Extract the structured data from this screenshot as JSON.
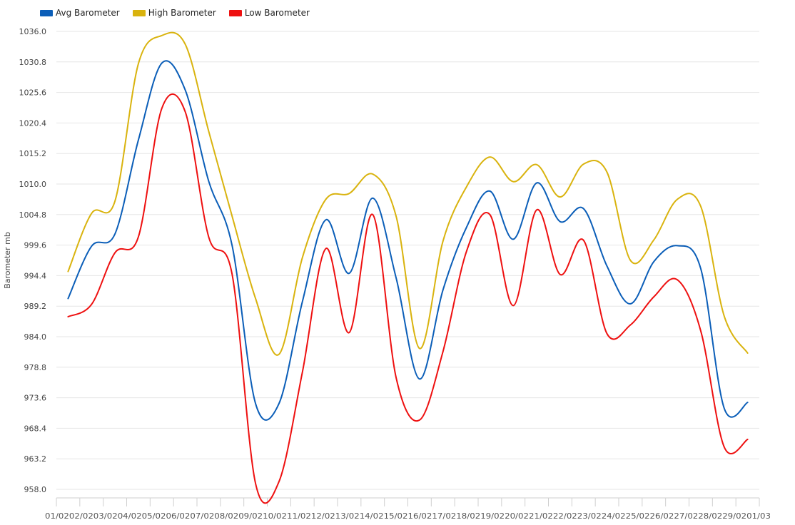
{
  "chart_data": {
    "type": "line",
    "title": "",
    "xlabel": "",
    "ylabel": "Barometer mb",
    "ylim": [
      958.0,
      1036.0
    ],
    "y_ticks": [
      "1036.0",
      "1030.8",
      "1025.6",
      "1020.4",
      "1015.2",
      "1010.0",
      "1004.8",
      "999.6",
      "994.4",
      "989.2",
      "984.0",
      "978.8",
      "973.6",
      "968.4",
      "963.2",
      "958.0"
    ],
    "x_tick_labels": [
      "01/02",
      "02/02",
      "03/02",
      "04/02",
      "05/02",
      "06/02",
      "07/02",
      "08/02",
      "09/02",
      "10/02",
      "11/02",
      "12/02",
      "13/02",
      "14/02",
      "15/02",
      "16/02",
      "17/02",
      "18/02",
      "19/02",
      "20/02",
      "21/02",
      "22/02",
      "23/02",
      "24/02",
      "25/02",
      "26/02",
      "27/02",
      "28/02",
      "29/02",
      "01/03"
    ],
    "x_tick_text": "01/0202/0203/0204/0205/0206/0207/0208/0209/0210/0211/0212/0213/0214/0215/0216/0217/0218/0219/0220/0221/0222/0223/0224/0225/0226/0227/0228/0229/0201/03",
    "grid": "horizontal",
    "legend_position": "top-left",
    "series": [
      {
        "name": "Avg Barometer",
        "color": "#0b5eb8",
        "points": [
          [
            0.5,
            990.5
          ],
          [
            1.5,
            999.4
          ],
          [
            2.5,
            1001.5
          ],
          [
            3.5,
            1017.5
          ],
          [
            4.5,
            1030.6
          ],
          [
            5.5,
            1026.0
          ],
          [
            6.5,
            1010.5
          ],
          [
            7.5,
            999.5
          ],
          [
            8.5,
            972.6
          ],
          [
            9.5,
            972.6
          ],
          [
            10.5,
            990.0
          ],
          [
            11.5,
            1003.9
          ],
          [
            12.5,
            994.8
          ],
          [
            13.5,
            1007.6
          ],
          [
            14.5,
            994.0
          ],
          [
            15.5,
            976.8
          ],
          [
            16.5,
            992.0
          ],
          [
            17.5,
            1002.6
          ],
          [
            18.5,
            1008.8
          ],
          [
            19.5,
            1000.6
          ],
          [
            20.5,
            1010.2
          ],
          [
            21.5,
            1003.6
          ],
          [
            22.5,
            1005.8
          ],
          [
            23.5,
            996.0
          ],
          [
            24.5,
            989.6
          ],
          [
            25.5,
            996.8
          ],
          [
            26.5,
            999.5
          ],
          [
            27.5,
            995.6
          ],
          [
            28.5,
            971.8
          ],
          [
            29.5,
            972.8
          ]
        ]
      },
      {
        "name": "High Barometer",
        "color": "#d9b30e",
        "points": [
          [
            0.5,
            995.1
          ],
          [
            1.5,
            1005.0
          ],
          [
            2.5,
            1007.1
          ],
          [
            3.5,
            1030.5
          ],
          [
            4.5,
            1035.3
          ],
          [
            5.5,
            1033.8
          ],
          [
            6.5,
            1019.0
          ],
          [
            7.5,
            1004.5
          ],
          [
            8.5,
            990.5
          ],
          [
            9.5,
            981.0
          ],
          [
            10.5,
            997.5
          ],
          [
            11.5,
            1007.4
          ],
          [
            12.5,
            1008.4
          ],
          [
            13.5,
            1011.7
          ],
          [
            14.5,
            1004.5
          ],
          [
            15.5,
            982.0
          ],
          [
            16.5,
            1000.3
          ],
          [
            17.5,
            1009.5
          ],
          [
            18.5,
            1014.6
          ],
          [
            19.5,
            1010.4
          ],
          [
            20.5,
            1013.3
          ],
          [
            21.5,
            1007.8
          ],
          [
            22.5,
            1013.4
          ],
          [
            23.5,
            1012.0
          ],
          [
            24.5,
            997.0
          ],
          [
            25.5,
            1000.5
          ],
          [
            26.5,
            1007.4
          ],
          [
            27.5,
            1006.2
          ],
          [
            28.5,
            987.5
          ],
          [
            29.5,
            981.2
          ]
        ]
      },
      {
        "name": "Low Barometer",
        "color": "#ee1010",
        "points": [
          [
            0.5,
            987.4
          ],
          [
            1.5,
            989.5
          ],
          [
            2.5,
            998.3
          ],
          [
            3.5,
            1001.0
          ],
          [
            4.5,
            1022.9
          ],
          [
            5.5,
            1022.3
          ],
          [
            6.5,
            1001.0
          ],
          [
            7.5,
            994.6
          ],
          [
            8.5,
            959.0
          ],
          [
            9.5,
            959.3
          ],
          [
            10.5,
            978.0
          ],
          [
            11.5,
            999.0
          ],
          [
            12.5,
            984.7
          ],
          [
            13.5,
            1004.8
          ],
          [
            14.5,
            977.0
          ],
          [
            15.5,
            969.8
          ],
          [
            16.5,
            981.5
          ],
          [
            17.5,
            998.5
          ],
          [
            18.5,
            1004.8
          ],
          [
            19.5,
            989.3
          ],
          [
            20.5,
            1005.6
          ],
          [
            21.5,
            994.6
          ],
          [
            22.5,
            1000.4
          ],
          [
            23.5,
            984.5
          ],
          [
            24.5,
            986.0
          ],
          [
            25.5,
            990.8
          ],
          [
            26.5,
            993.7
          ],
          [
            27.5,
            985.0
          ],
          [
            28.5,
            965.2
          ],
          [
            29.5,
            966.5
          ]
        ]
      }
    ]
  }
}
